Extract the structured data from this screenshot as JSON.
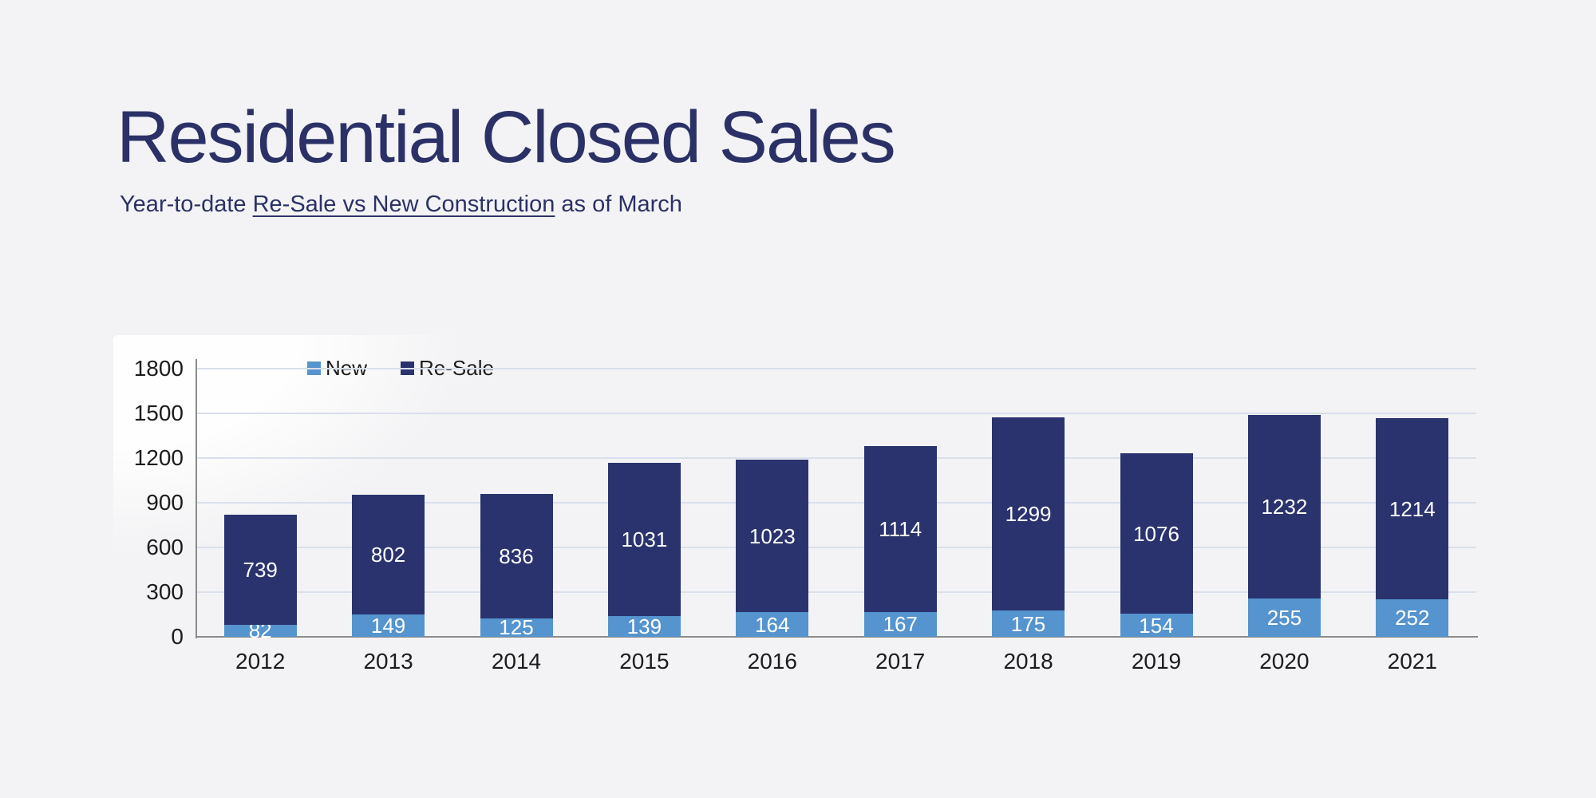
{
  "page": {
    "background_color": "#f3f3f5"
  },
  "header": {
    "title": "Residential Closed Sales",
    "subtitle": {
      "prefix": "Year-to-date ",
      "underlined": "Re-Sale vs New Construction",
      "suffix": " as of March"
    },
    "text_color": "#2b3166"
  },
  "chart_data": {
    "type": "bar",
    "stacked": true,
    "title": "Residential Closed Sales",
    "subtitle": "Year-to-date Re-Sale vs New Construction as of March",
    "categories": [
      "2012",
      "2013",
      "2014",
      "2015",
      "2016",
      "2017",
      "2018",
      "2019",
      "2020",
      "2021"
    ],
    "series": [
      {
        "name": "New",
        "color": "#5594ce",
        "values": [
          82,
          149,
          125,
          139,
          164,
          167,
          175,
          154,
          255,
          252
        ]
      },
      {
        "name": "Re-Sale",
        "color": "#2a336e",
        "values": [
          739,
          802,
          836,
          1031,
          1023,
          1114,
          1299,
          1076,
          1232,
          1214
        ]
      }
    ],
    "ylim": [
      0,
      1800
    ],
    "yticks": [
      0,
      300,
      600,
      900,
      1200,
      1500,
      1800
    ],
    "grid": true,
    "legend_position": "top",
    "xlabel": "",
    "ylabel": "",
    "colors": {
      "gridline": "#d9dfeb",
      "axis": "#8b8b8b",
      "tick_text": "#1c1c1c",
      "bar_label_text": "#ffffff"
    }
  }
}
